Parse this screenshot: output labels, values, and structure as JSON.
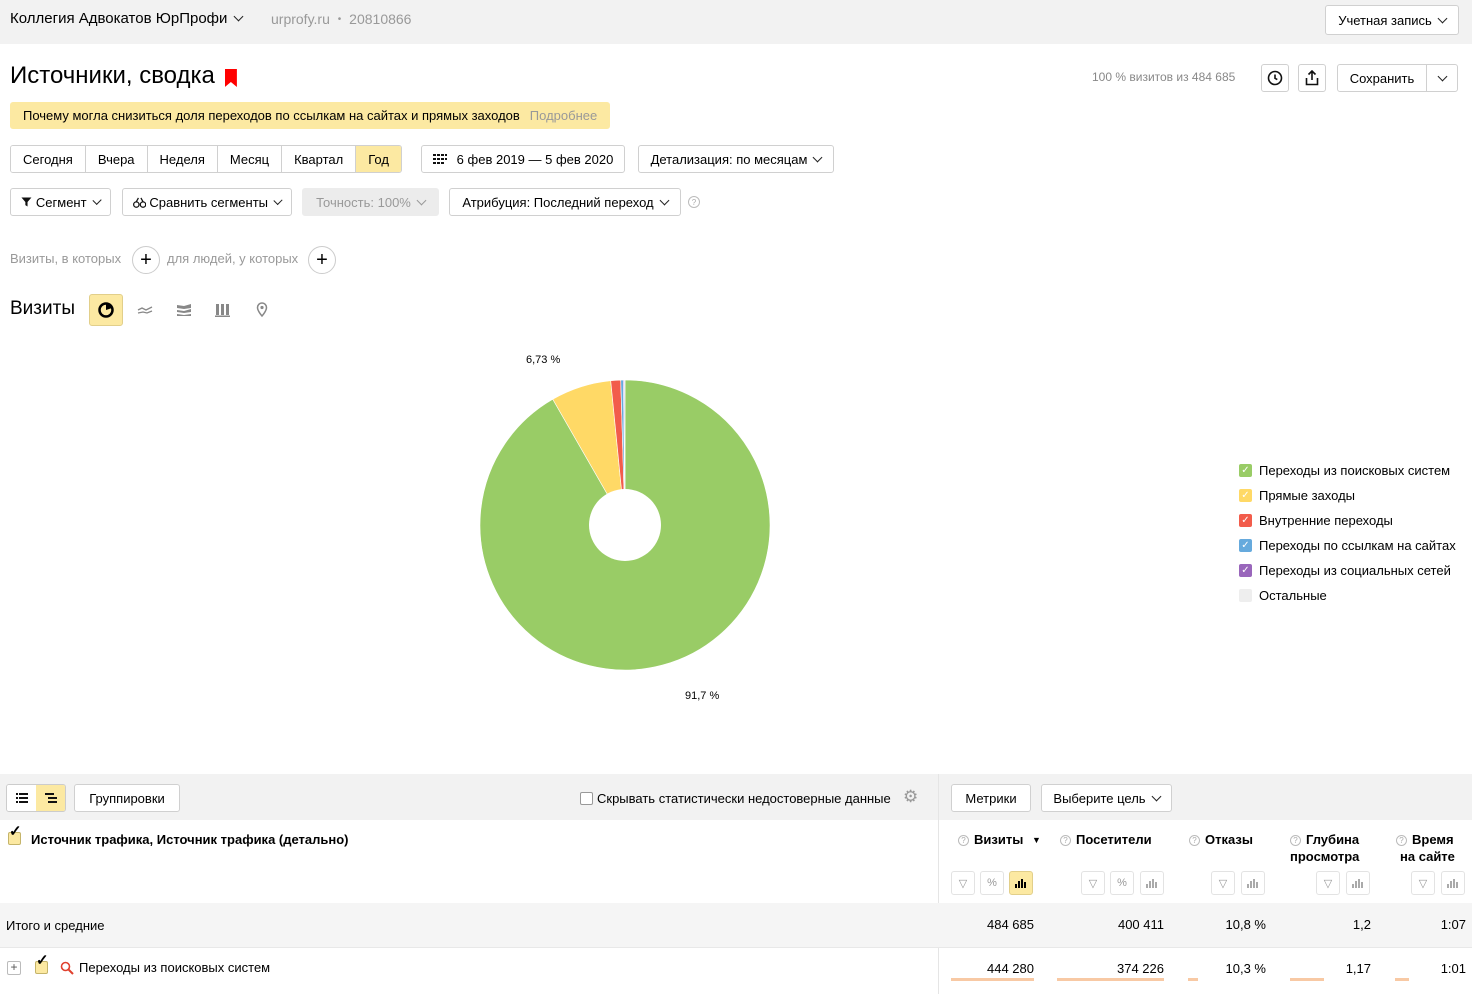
{
  "topbar": {
    "site_name": "Коллегия Адвокатов ЮрПрофи",
    "domain": "urprofy.ru",
    "separator": "•",
    "counter_id": "20810866",
    "account_label": "Учетная запись"
  },
  "header": {
    "title": "Источники, сводка",
    "summary": "100 % визитов из 484 685",
    "save_label": "Сохранить"
  },
  "notice": {
    "text": "Почему могла снизиться доля переходов по ссылкам на сайтах и прямых заходов",
    "more": "Подробнее"
  },
  "period": {
    "tabs": [
      "Сегодня",
      "Вчера",
      "Неделя",
      "Месяц",
      "Квартал",
      "Год"
    ],
    "active": "Год",
    "date_range": "6 фев 2019 — 5 фев 2020",
    "detail": "Детализация: по месяцам"
  },
  "controls": {
    "segment": "Сегмент",
    "compare": "Сравнить сегменты",
    "accuracy": "Точность: 100%",
    "attribution": "Атрибуция: Последний переход",
    "help": "?"
  },
  "filters": {
    "visits_where": "Визиты, в которых",
    "people_where": "для людей, у которых",
    "plus": "+"
  },
  "chart_section": {
    "label": "Визиты",
    "tabs": [
      "pie-chart-icon",
      "line-chart-icon",
      "area-chart-icon",
      "bar-chart-icon",
      "map-icon"
    ],
    "active_tab": "pie-chart-icon"
  },
  "chart_data": {
    "type": "pie",
    "donut": true,
    "slices": [
      {
        "name": "Переходы из поисковых систем",
        "value": 91.7,
        "color": "#99cc66"
      },
      {
        "name": "Прямые заходы",
        "value": 6.73,
        "color": "#ffd966"
      },
      {
        "name": "Внутренние переходы",
        "value": 1.1,
        "color": "#f25c4b"
      },
      {
        "name": "Переходы по ссылкам на сайтах",
        "value": 0.3,
        "color": "#66aadd"
      },
      {
        "name": "Переходы из социальных сетей",
        "value": 0.12,
        "color": "#9966bb"
      },
      {
        "name": "Остальные",
        "value": 0.05,
        "color": "#eeeeee"
      }
    ],
    "labels": [
      "91,7 %",
      "6,73 %"
    ],
    "legend_position": "right"
  },
  "table": {
    "groupings": "Группировки",
    "hide_unreliable": "Скрывать статистически недостоверные данные",
    "metrics": "Метрики",
    "choose_goal": "Выберите цель",
    "dimension_header": "Источник трафика, Источник трафика (детально)",
    "columns": [
      {
        "name": "Визиты",
        "sort": "▼"
      },
      {
        "name": "Посетители"
      },
      {
        "name": "Отказы"
      },
      {
        "name_line1": "Глубина",
        "name_line2": "просмотра"
      },
      {
        "name_line1": "Время",
        "name_line2": "на сайте"
      }
    ],
    "totals": {
      "label": "Итого и средние",
      "visits": "484 685",
      "visitors": "400 411",
      "bounce": "10,8 %",
      "depth": "1,2",
      "time": "1:07"
    },
    "rows": [
      {
        "label": "Переходы из поисковых систем",
        "visits": "444 280",
        "visitors": "374 226",
        "bounce": "10,3 %",
        "depth": "1,17",
        "time": "1:01"
      }
    ]
  }
}
